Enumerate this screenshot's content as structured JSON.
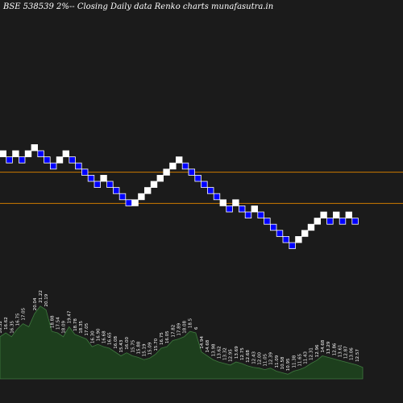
{
  "header": {
    "title": "BSE 538539 2%-- Closing Daily data Renko charts munafasutra.in"
  },
  "colors": {
    "background": "#1b1b1b",
    "up_brick": "#ffffff",
    "down_brick": "#0000ff",
    "reference_line": "#cc7a00",
    "volume_fill": "#1d3f1d",
    "volume_stroke": "#3f7a3f",
    "volume_label": "#ffffff"
  },
  "chart_data": {
    "type": "renko",
    "bricks": [
      {
        "x": 0,
        "level": 0,
        "dir": "up"
      },
      {
        "x": 1,
        "level": -1,
        "dir": "down"
      },
      {
        "x": 2,
        "level": 0,
        "dir": "up"
      },
      {
        "x": 3,
        "level": -1,
        "dir": "down"
      },
      {
        "x": 4,
        "level": 0,
        "dir": "up"
      },
      {
        "x": 5,
        "level": 1,
        "dir": "up"
      },
      {
        "x": 6,
        "level": 0,
        "dir": "down"
      },
      {
        "x": 7,
        "level": -1,
        "dir": "down"
      },
      {
        "x": 8,
        "level": -2,
        "dir": "down"
      },
      {
        "x": 9,
        "level": -1,
        "dir": "up"
      },
      {
        "x": 10,
        "level": 0,
        "dir": "up"
      },
      {
        "x": 11,
        "level": -1,
        "dir": "down"
      },
      {
        "x": 12,
        "level": -2,
        "dir": "down"
      },
      {
        "x": 13,
        "level": -3,
        "dir": "down"
      },
      {
        "x": 14,
        "level": -4,
        "dir": "down"
      },
      {
        "x": 15,
        "level": -5,
        "dir": "down"
      },
      {
        "x": 16,
        "level": -4,
        "dir": "up"
      },
      {
        "x": 17,
        "level": -5,
        "dir": "down"
      },
      {
        "x": 18,
        "level": -6,
        "dir": "down"
      },
      {
        "x": 19,
        "level": -7,
        "dir": "down"
      },
      {
        "x": 20,
        "level": -8,
        "dir": "down"
      },
      {
        "x": 21,
        "level": -8,
        "dir": "up"
      },
      {
        "x": 22,
        "level": -7,
        "dir": "up"
      },
      {
        "x": 23,
        "level": -6,
        "dir": "up"
      },
      {
        "x": 24,
        "level": -5,
        "dir": "up"
      },
      {
        "x": 25,
        "level": -4,
        "dir": "up"
      },
      {
        "x": 26,
        "level": -3,
        "dir": "up"
      },
      {
        "x": 27,
        "level": -2,
        "dir": "up"
      },
      {
        "x": 28,
        "level": -1,
        "dir": "up"
      },
      {
        "x": 29,
        "level": -2,
        "dir": "down"
      },
      {
        "x": 30,
        "level": -3,
        "dir": "down"
      },
      {
        "x": 31,
        "level": -4,
        "dir": "down"
      },
      {
        "x": 32,
        "level": -5,
        "dir": "down"
      },
      {
        "x": 33,
        "level": -6,
        "dir": "down"
      },
      {
        "x": 34,
        "level": -7,
        "dir": "down"
      },
      {
        "x": 35,
        "level": -8,
        "dir": "up"
      },
      {
        "x": 36,
        "level": -9,
        "dir": "down"
      },
      {
        "x": 37,
        "level": -8,
        "dir": "up"
      },
      {
        "x": 38,
        "level": -9,
        "dir": "down"
      },
      {
        "x": 39,
        "level": -10,
        "dir": "down"
      },
      {
        "x": 40,
        "level": -9,
        "dir": "up"
      },
      {
        "x": 41,
        "level": -10,
        "dir": "down"
      },
      {
        "x": 42,
        "level": -11,
        "dir": "down"
      },
      {
        "x": 43,
        "level": -12,
        "dir": "down"
      },
      {
        "x": 44,
        "level": -13,
        "dir": "down"
      },
      {
        "x": 45,
        "level": -14,
        "dir": "down"
      },
      {
        "x": 46,
        "level": -15,
        "dir": "down"
      },
      {
        "x": 47,
        "level": -14,
        "dir": "up"
      },
      {
        "x": 48,
        "level": -13,
        "dir": "up"
      },
      {
        "x": 49,
        "level": -12,
        "dir": "up"
      },
      {
        "x": 50,
        "level": -11,
        "dir": "up"
      },
      {
        "x": 51,
        "level": -10,
        "dir": "up"
      },
      {
        "x": 52,
        "level": -11,
        "dir": "down"
      },
      {
        "x": 53,
        "level": -10,
        "dir": "up"
      },
      {
        "x": 54,
        "level": -11,
        "dir": "down"
      },
      {
        "x": 55,
        "level": -10,
        "dir": "up"
      },
      {
        "x": 56,
        "level": -11,
        "dir": "down"
      }
    ],
    "reference_lines": [
      -3.5,
      -8.6
    ],
    "volume": [
      {
        "label": "16.32",
        "value": 0.55
      },
      {
        "label": "16.62",
        "value": 0.6
      },
      {
        "label": "16.35",
        "value": 0.55
      },
      {
        "label": "16.75",
        "value": 0.65
      },
      {
        "label": "17.05",
        "value": 0.72
      },
      {
        "label": "",
        "value": 0.68
      },
      {
        "label": "20.04",
        "value": 0.85
      },
      {
        "label": "21.22",
        "value": 0.95
      },
      {
        "label": "20.19",
        "value": 0.9
      },
      {
        "label": "18.88",
        "value": 0.62
      },
      {
        "label": "17.54",
        "value": 0.6
      },
      {
        "label": "18.09",
        "value": 0.55
      },
      {
        "label": "19.47",
        "value": 0.68
      },
      {
        "label": "18.78",
        "value": 0.58
      },
      {
        "label": "18.35",
        "value": 0.55
      },
      {
        "label": "17.05",
        "value": 0.52
      },
      {
        "label": "16.30",
        "value": 0.42
      },
      {
        "label": "16.90",
        "value": 0.45
      },
      {
        "label": "16.68",
        "value": 0.42
      },
      {
        "label": "16.65",
        "value": 0.4
      },
      {
        "label": "16.08",
        "value": 0.35
      },
      {
        "label": "15.43",
        "value": 0.3
      },
      {
        "label": "16.00",
        "value": 0.34
      },
      {
        "label": "15.75",
        "value": 0.3
      },
      {
        "label": "15.88",
        "value": 0.28
      },
      {
        "label": "15.19",
        "value": 0.25
      },
      {
        "label": "15.09",
        "value": 0.27
      },
      {
        "label": "15.70",
        "value": 0.32
      },
      {
        "label": "16.75",
        "value": 0.4
      },
      {
        "label": "16.05",
        "value": 0.42
      },
      {
        "label": "17.82",
        "value": 0.5
      },
      {
        "label": "17.89",
        "value": 0.52
      },
      {
        "label": "18.08",
        "value": 0.55
      },
      {
        "label": "18.5",
        "value": 0.62
      },
      {
        "label": "6",
        "value": 0.6
      },
      {
        "label": "14.94",
        "value": 0.35
      },
      {
        "label": "14.68",
        "value": 0.3
      },
      {
        "label": "13.98",
        "value": 0.25
      },
      {
        "label": "13.62",
        "value": 0.22
      },
      {
        "label": "13.32",
        "value": 0.2
      },
      {
        "label": "12.95",
        "value": 0.18
      },
      {
        "label": "13.69",
        "value": 0.22
      },
      {
        "label": "12.75",
        "value": 0.2
      },
      {
        "label": "12.68",
        "value": 0.17
      },
      {
        "label": "12.43",
        "value": 0.15
      },
      {
        "label": "12.00",
        "value": 0.14
      },
      {
        "label": "11.05",
        "value": 0.12
      },
      {
        "label": "12.39",
        "value": 0.14
      },
      {
        "label": "11.09",
        "value": 0.1
      },
      {
        "label": "10.58",
        "value": 0.08
      },
      {
        "label": "10.95",
        "value": 0.06
      },
      {
        "label": "11.38",
        "value": 0.1
      },
      {
        "label": "11.65",
        "value": 0.12
      },
      {
        "label": "11.43",
        "value": 0.15
      },
      {
        "label": "12.31",
        "value": 0.2
      },
      {
        "label": "12.96",
        "value": 0.24
      },
      {
        "label": "14.68",
        "value": 0.3
      },
      {
        "label": "13.29",
        "value": 0.28
      },
      {
        "label": "12.86",
        "value": 0.26
      },
      {
        "label": "13.61",
        "value": 0.24
      },
      {
        "label": "12.87",
        "value": 0.22
      },
      {
        "label": "13.06",
        "value": 0.2
      },
      {
        "label": "12.57",
        "value": 0.18
      },
      {
        "label": "",
        "value": 0.15
      }
    ]
  }
}
